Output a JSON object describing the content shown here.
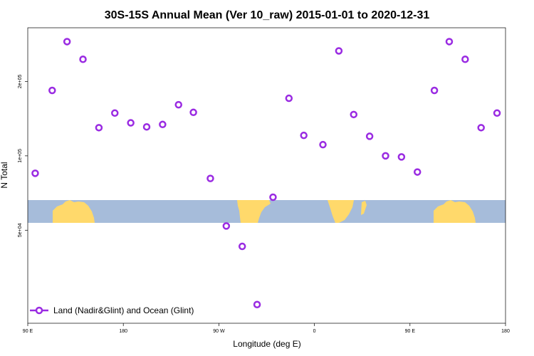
{
  "chart_data": {
    "type": "scatter",
    "title": "30S-15S Annual Mean (Ver 10_raw)   2015-01-01 to 2020-12-31",
    "xlabel": "Longitude (deg E)",
    "ylabel": "N Total",
    "x_ticks": [
      "90 E",
      "180",
      "90 W",
      "0",
      "90 E",
      "180"
    ],
    "y_ticks": [
      "5e+04",
      "1e+05",
      "2e+05"
    ],
    "series": [
      {
        "name": "Land (Nadir&Glint) and Ocean (Glint)",
        "color": "#9a2be2",
        "values": [
          {
            "x": 97,
            "y": 85000
          },
          {
            "x": 113,
            "y": 184000
          },
          {
            "x": 127,
            "y": 290000
          },
          {
            "x": 142,
            "y": 246000
          },
          {
            "x": 157,
            "y": 130000
          },
          {
            "x": 172,
            "y": 149000
          },
          {
            "x": 187,
            "y": 136000
          },
          {
            "x": 202,
            "y": 131000
          },
          {
            "x": 217,
            "y": 134000
          },
          {
            "x": 232,
            "y": 161000
          },
          {
            "x": 246,
            "y": 150000
          },
          {
            "x": 262,
            "y": 81000
          },
          {
            "x": 277,
            "y": 52000
          },
          {
            "x": 292,
            "y": 43000
          },
          {
            "x": 306,
            "y": 25000
          },
          {
            "x": 321,
            "y": 68000
          },
          {
            "x": 336,
            "y": 171000
          },
          {
            "x": 350,
            "y": 121000
          },
          {
            "x": 368,
            "y": 111000
          },
          {
            "x": 383,
            "y": 266000
          },
          {
            "x": 397,
            "y": 147000
          },
          {
            "x": 412,
            "y": 120000
          },
          {
            "x": 427,
            "y": 100000
          },
          {
            "x": 442,
            "y": 99000
          },
          {
            "x": 457,
            "y": 86000
          },
          {
            "x": 473,
            "y": 184000
          },
          {
            "x": 487,
            "y": 290000
          },
          {
            "x": 502,
            "y": 246000
          },
          {
            "x": 517,
            "y": 130000
          },
          {
            "x": 532,
            "y": 149000
          }
        ]
      }
    ],
    "xlim": [
      90,
      540
    ],
    "ylim": [
      21000,
      330000
    ],
    "y_scale": "log",
    "grid": false,
    "legend_position": "bottom-left",
    "map_colors": {
      "ocean": "#a6bcda",
      "land": "#ffd96b"
    }
  }
}
